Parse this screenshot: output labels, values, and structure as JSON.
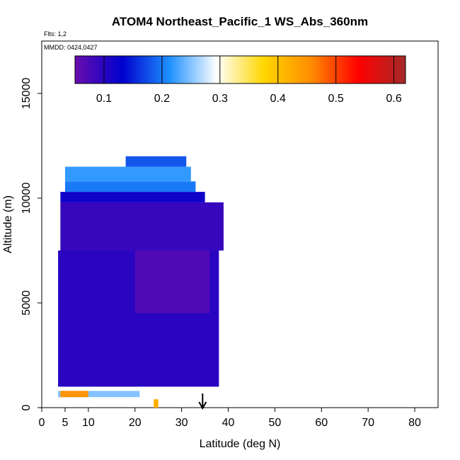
{
  "chart_data": {
    "type": "heatmap",
    "title": "ATOM4 Northeast_Pacific_1 WS_Abs_360nm",
    "flights_label": "Flts: 1,2",
    "dates_label": "MMDD: 0424,0427",
    "xlabel": "Latitude (deg N)",
    "ylabel": "Altitude (m)",
    "xlim": [
      0,
      85
    ],
    "ylim": [
      0,
      17500
    ],
    "x_ticks": [
      0,
      5,
      10,
      20,
      30,
      40,
      50,
      60,
      70,
      80
    ],
    "y_ticks": [
      0,
      5000,
      10000,
      15000
    ],
    "colorbar": {
      "range": [
        0.05,
        0.62
      ],
      "ticks": [
        0.1,
        0.2,
        0.3,
        0.4,
        0.5,
        0.6
      ],
      "stops": [
        "#6a0dad",
        "#0000cd",
        "#1e90ff",
        "#ffffff",
        "#ffd700",
        "#ff8c00",
        "#ff0000",
        "#a52a2a"
      ]
    },
    "arrow_latitude": 34.5,
    "blocks": [
      {
        "lat": [
          4,
          39
        ],
        "alt": [
          7500,
          9800
        ],
        "value": 0.09
      },
      {
        "lat": [
          3.5,
          38
        ],
        "alt": [
          1000,
          7500
        ],
        "value": 0.1
      },
      {
        "lat": [
          20,
          36
        ],
        "alt": [
          4500,
          7500
        ],
        "value": 0.07
      },
      {
        "lat": [
          4,
          35
        ],
        "alt": [
          9800,
          10300
        ],
        "value": 0.12
      },
      {
        "lat": [
          5,
          33
        ],
        "alt": [
          10300,
          10800
        ],
        "value": 0.2
      },
      {
        "lat": [
          5,
          32
        ],
        "alt": [
          10800,
          11500
        ],
        "value": 0.22
      },
      {
        "lat": [
          18,
          31
        ],
        "alt": [
          11500,
          12000
        ],
        "value": 0.18
      },
      {
        "lat": [
          3.5,
          21
        ],
        "alt": [
          500,
          800
        ],
        "value": 0.25
      },
      {
        "lat": [
          4,
          10
        ],
        "alt": [
          500,
          800
        ],
        "value": 0.45
      },
      {
        "lat": [
          24,
          25
        ],
        "alt": [
          0,
          400
        ],
        "value": 0.42
      }
    ]
  }
}
